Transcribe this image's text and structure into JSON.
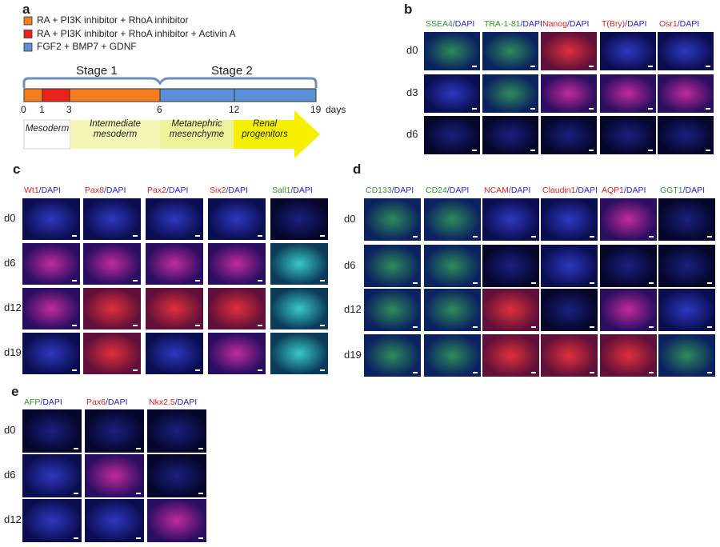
{
  "panel_a": {
    "label": "a",
    "legend": [
      {
        "text": "RA + PI3K inhibitor + RhoA inhibitor",
        "color": "#f47d20"
      },
      {
        "text": "RA + PI3K inhibitor + RhoA inhibitor + Activin A",
        "color": "#e8231c"
      },
      {
        "text": "FGF2 + BMP7 + GDNF",
        "color": "#5b8fd6"
      }
    ],
    "stages": [
      "Stage 1",
      "Stage 2"
    ],
    "timeline_ticks": [
      0,
      1,
      3,
      6,
      12,
      19
    ],
    "unit": "days",
    "phases": [
      "Mesoderm",
      "Intermediate mesoderm",
      "Metanephric mesenchyme",
      "Renal progenitors"
    ]
  },
  "panel_b": {
    "label": "b",
    "stain": "/DAPI",
    "columns": [
      {
        "marker": "SSEA4",
        "color": "#2a9a2a"
      },
      {
        "marker": "TRA-1-81",
        "color": "#2a9a2a"
      },
      {
        "marker": "Nanog",
        "color": "#e02020"
      },
      {
        "marker": "T(Bry)",
        "color": "#e02020"
      },
      {
        "marker": "Osr1",
        "color": "#e02020"
      }
    ],
    "rows": [
      "d0",
      "d3",
      "d6"
    ]
  },
  "panel_c": {
    "label": "c",
    "stain": "/DAPI",
    "columns": [
      {
        "marker": "Wt1",
        "color": "#e02020"
      },
      {
        "marker": "Pax8",
        "color": "#e02020"
      },
      {
        "marker": "Pax2",
        "color": "#e02020"
      },
      {
        "marker": "Six2",
        "color": "#e02020"
      },
      {
        "marker": "Sall1",
        "color": "#2a9a2a"
      }
    ],
    "rows": [
      "d0",
      "d6",
      "d12",
      "d19"
    ]
  },
  "panel_d": {
    "label": "d",
    "stain": "/DAPI",
    "columns": [
      {
        "marker": "CD133",
        "color": "#2a9a2a"
      },
      {
        "marker": "CD24",
        "color": "#2a9a2a"
      },
      {
        "marker": "NCAM",
        "color": "#e02020"
      },
      {
        "marker": "Claudin1",
        "color": "#e02020"
      },
      {
        "marker": "AQP1",
        "color": "#e02020"
      },
      {
        "marker": "GGT1",
        "color": "#2a9a2a"
      }
    ],
    "rows": [
      "d0",
      "d6",
      "d12",
      "d19"
    ]
  },
  "panel_e": {
    "label": "e",
    "stain": "/DAPI",
    "columns": [
      {
        "marker": "AFP",
        "color": "#2a9a2a"
      },
      {
        "marker": "Pax6",
        "color": "#e02020"
      },
      {
        "marker": "Nkx2.5",
        "color": "#e02020"
      }
    ],
    "rows": [
      "d0",
      "d6",
      "d12"
    ]
  }
}
